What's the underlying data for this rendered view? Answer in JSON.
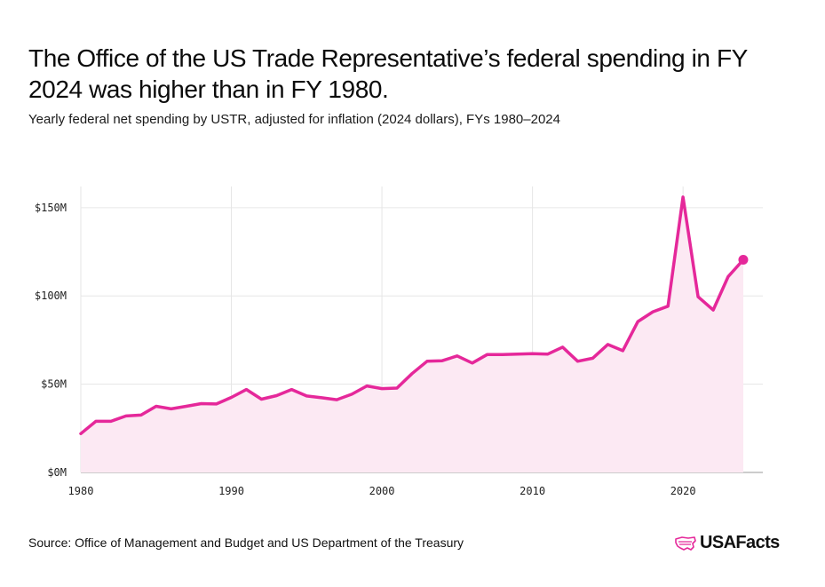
{
  "header": {
    "title": "The Office of the US Trade Representative’s federal spending in FY 2024 was higher than in FY 1980.",
    "subtitle": "Yearly federal net spending by USTR, adjusted for inflation (2024 dollars), FYs 1980–2024"
  },
  "footer": {
    "source": "Source: Office of Management and Budget and US Department of the Treasury",
    "logo_text": "USAFacts"
  },
  "colors": {
    "line": "#e5289a",
    "area": "#fce9f3",
    "grid": "#e6e6e6",
    "axis": "#999999"
  },
  "icons": {
    "logo": "usa-map-icon"
  },
  "chart_data": {
    "type": "area",
    "title": "The Office of the US Trade Representative’s federal spending in FY 2024 was higher than in FY 1980.",
    "subtitle": "Yearly federal net spending by USTR, adjusted for inflation (2024 dollars), FYs 1980–2024",
    "xlabel": "",
    "ylabel": "",
    "x": [
      1980,
      1981,
      1982,
      1983,
      1984,
      1985,
      1986,
      1987,
      1988,
      1989,
      1990,
      1991,
      1992,
      1993,
      1994,
      1995,
      1996,
      1997,
      1998,
      1999,
      2000,
      2001,
      2002,
      2003,
      2004,
      2005,
      2006,
      2007,
      2008,
      2009,
      2010,
      2011,
      2012,
      2013,
      2014,
      2015,
      2016,
      2017,
      2018,
      2019,
      2020,
      2021,
      2022,
      2023,
      2024
    ],
    "series": [
      {
        "values": [
          22,
          29,
          29,
          32,
          32.5,
          37.5,
          36,
          37.5,
          39,
          38.8,
          42.5,
          47,
          41.5,
          43.5,
          47,
          43.3,
          42.3,
          41.2,
          44.3,
          49,
          47.5,
          47.8,
          56,
          63,
          63.3,
          66,
          62,
          66.8,
          66.8,
          67,
          67.3,
          67,
          71,
          63,
          64.7,
          72.5,
          69,
          85.5,
          91,
          94.2,
          156,
          99.5,
          92,
          111,
          120.5
        ]
      }
    ],
    "xticks": [
      1980,
      1990,
      2000,
      2010,
      2020
    ],
    "yticks": [
      0,
      50,
      100,
      150
    ],
    "ytick_labels": [
      "$0M",
      "$50M",
      "$100M",
      "$150M"
    ],
    "xlim": [
      1980,
      2025.3
    ],
    "ylim": [
      0,
      162
    ],
    "grid": true,
    "highlight_last_point": true
  }
}
